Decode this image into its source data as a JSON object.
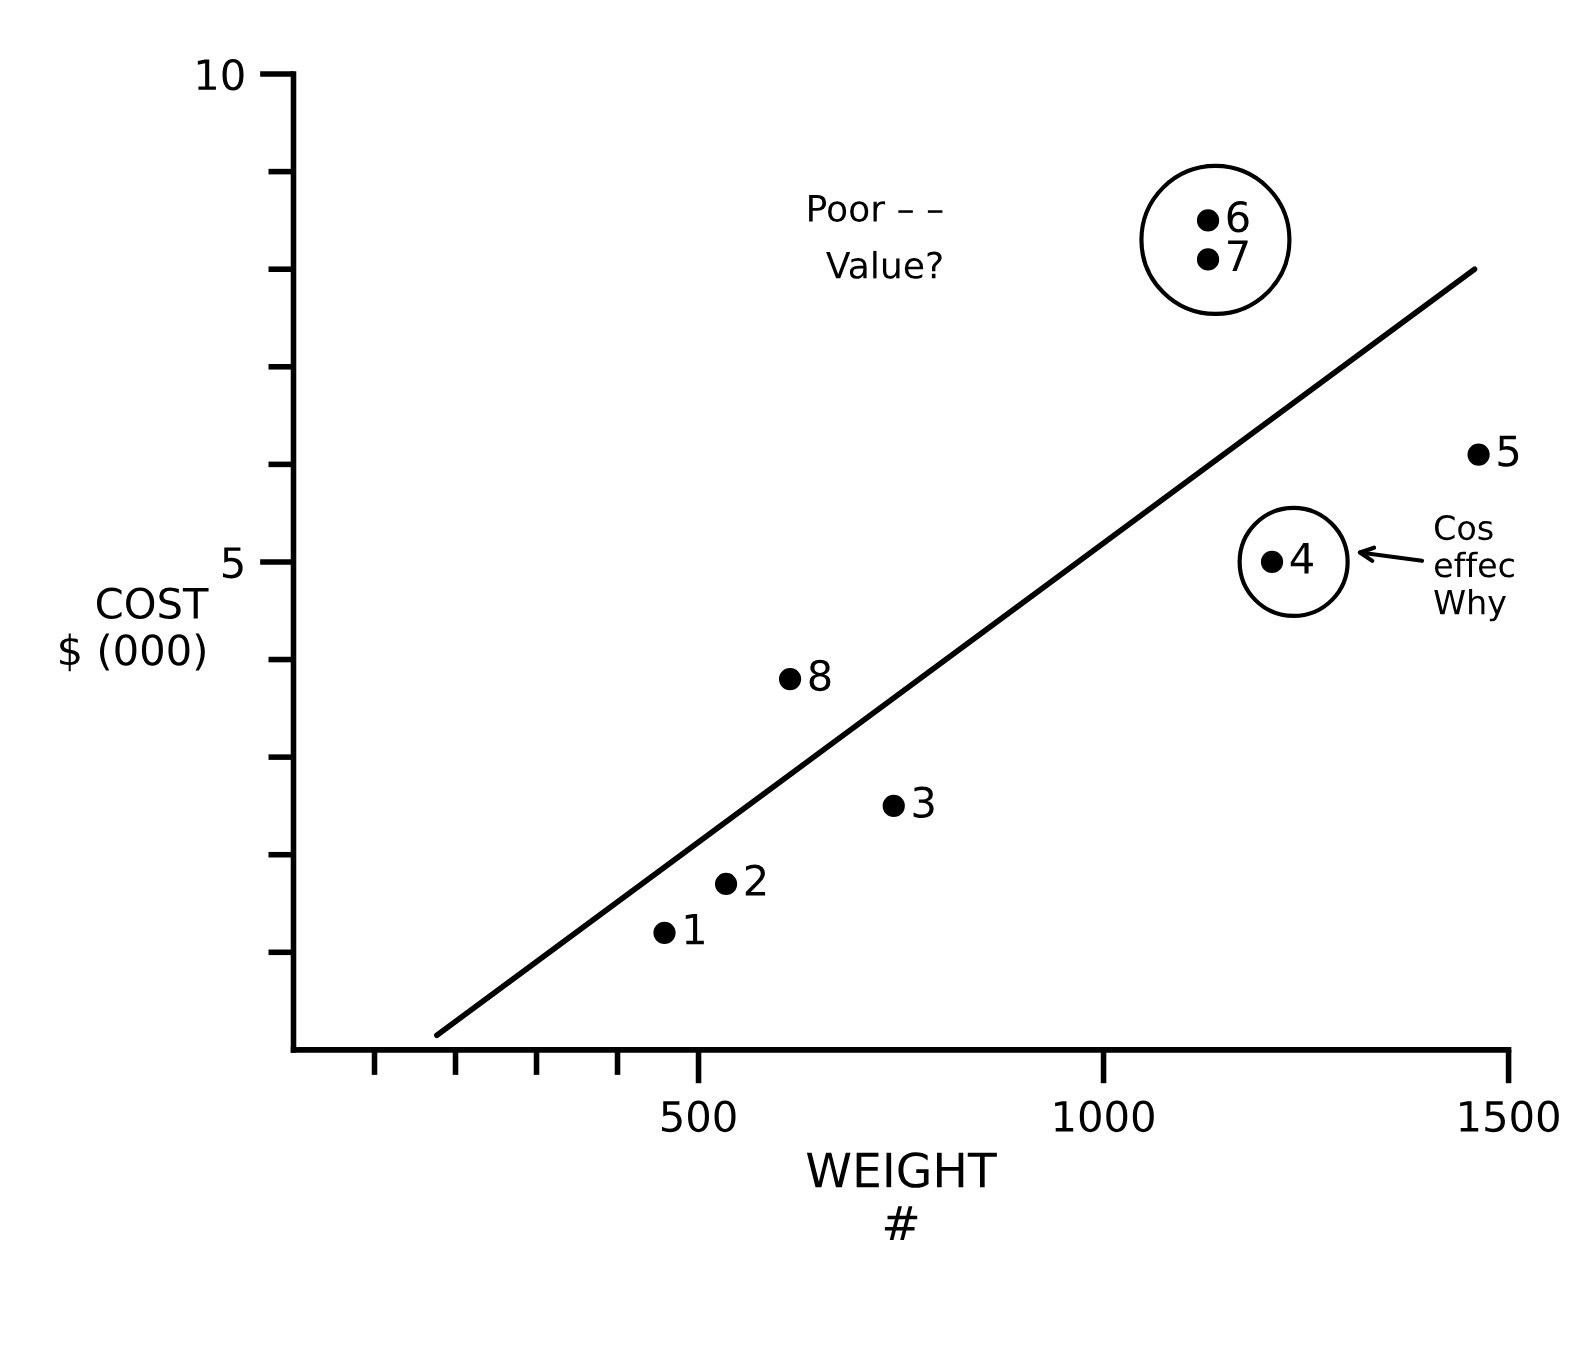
{
  "chart_data": {
    "type": "scatter",
    "xlabel": "WEIGHT\n#",
    "ylabel": "COST\n$ (000)",
    "x": [
      458,
      534,
      741,
      1208,
      1463,
      1129,
      1129,
      613
    ],
    "series": [
      {
        "type": "scatter",
        "color": "#000000",
        "marker": "circle",
        "values": [
          1.2,
          1.7,
          2.5,
          5.0,
          6.1,
          8.5,
          8.1,
          3.8
        ]
      },
      {
        "type": "line",
        "color": "#000000",
        "marker": "none",
        "line_style": "solid",
        "x": [
          177,
          1458
        ],
        "values": [
          0.15,
          8.0
        ]
      }
    ],
    "xlim": [
      0,
      1500
    ],
    "ylim": [
      0,
      10
    ],
    "xticks": [
      {
        "value": 100,
        "label": null
      },
      {
        "value": 200,
        "label": null
      },
      {
        "value": 300,
        "label": null
      },
      {
        "value": 400,
        "label": null
      },
      500,
      1000,
      1500
    ],
    "yticks": [
      {
        "value": 1,
        "label": null
      },
      {
        "value": 2,
        "label": null
      },
      {
        "value": 3,
        "label": null
      },
      {
        "value": 4,
        "label": null
      },
      5,
      {
        "value": 6,
        "label": null
      },
      {
        "value": 7,
        "label": null
      },
      {
        "value": 8,
        "label": null
      },
      {
        "value": 9,
        "label": null
      },
      10
    ],
    "grid": false,
    "legend": false,
    "annotations": [
      {
        "text": "1",
        "x": 458,
        "y": 1.2
      },
      {
        "text": "2",
        "x": 534,
        "y": 1.7
      },
      {
        "text": "3",
        "x": 741,
        "y": 2.5
      },
      {
        "text": "4",
        "x": 1208,
        "y": 5.0
      },
      {
        "text": "5",
        "x": 1463,
        "y": 6.1
      },
      {
        "text": "6",
        "x": 1129,
        "y": 8.5
      },
      {
        "text": "7",
        "x": 1129,
        "y": 8.1
      },
      {
        "text": "8",
        "x": 613,
        "y": 3.8
      },
      "Poor – –\nValue?",
      "Cos\neffec\nWhy"
    ]
  }
}
